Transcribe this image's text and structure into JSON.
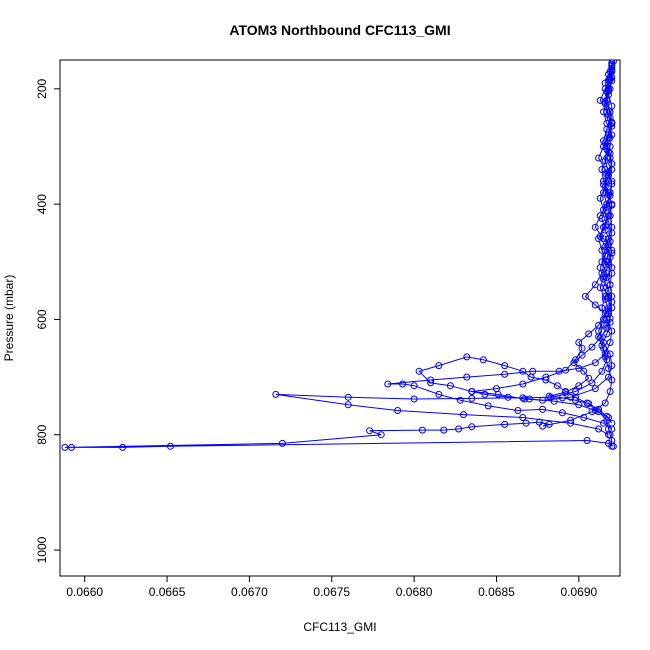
{
  "chart_data": {
    "type": "line",
    "title": "ATOM3 Northbound CFC113_GMI",
    "xlabel": "CFC113_GMI",
    "ylabel": "Pressure (mbar)",
    "xlim": [
      0.06585,
      0.06925
    ],
    "ylim": [
      1045,
      150
    ],
    "y_inverted": true,
    "xticks": [
      0.066,
      0.0665,
      0.067,
      0.0675,
      0.068,
      0.0685,
      0.069
    ],
    "xtick_labels": [
      "0.0660",
      "0.0665",
      "0.0670",
      "0.0675",
      "0.0680",
      "0.0685",
      "0.0690"
    ],
    "yticks": [
      200,
      400,
      600,
      800,
      1000
    ],
    "ytick_labels": [
      "200",
      "400",
      "600",
      "800",
      "1000"
    ],
    "grid": false,
    "colors": {
      "series": "#0000ff",
      "axes": "#000000"
    },
    "series": [
      {
        "marker": "open-circle",
        "points": [
          [
            0.0692,
            820
          ],
          [
            0.0692,
            810
          ],
          [
            0.06919,
            800
          ],
          [
            0.06918,
            790
          ],
          [
            0.06917,
            775
          ],
          [
            0.06912,
            760
          ],
          [
            0.06905,
            745
          ],
          [
            0.06898,
            735
          ],
          [
            0.06892,
            725
          ],
          [
            0.06887,
            715
          ],
          [
            0.0688,
            705
          ],
          [
            0.06871,
            700
          ],
          [
            0.06866,
            690
          ],
          [
            0.06855,
            680
          ],
          [
            0.06842,
            670
          ],
          [
            0.06832,
            665
          ],
          [
            0.06815,
            680
          ],
          [
            0.06803,
            690
          ],
          [
            0.0681,
            710
          ],
          [
            0.06822,
            715
          ],
          [
            0.06835,
            725
          ],
          [
            0.06851,
            730
          ],
          [
            0.06867,
            738
          ],
          [
            0.06878,
            740
          ],
          [
            0.06895,
            735
          ],
          [
            0.0691,
            720
          ],
          [
            0.06918,
            700
          ],
          [
            0.0692,
            680
          ],
          [
            0.06919,
            660
          ],
          [
            0.06915,
            640
          ],
          [
            0.06912,
            620
          ],
          [
            0.06915,
            600
          ],
          [
            0.06918,
            580
          ],
          [
            0.0692,
            560
          ],
          [
            0.06919,
            540
          ],
          [
            0.06917,
            520
          ],
          [
            0.06914,
            500
          ],
          [
            0.06916,
            480
          ],
          [
            0.06918,
            460
          ],
          [
            0.0692,
            440
          ],
          [
            0.06919,
            420
          ],
          [
            0.06917,
            400
          ],
          [
            0.06915,
            380
          ],
          [
            0.06918,
            360
          ],
          [
            0.0692,
            340
          ],
          [
            0.06919,
            320
          ],
          [
            0.06917,
            300
          ],
          [
            0.06918,
            280
          ],
          [
            0.0692,
            260
          ],
          [
            0.06919,
            240
          ],
          [
            0.06917,
            220
          ],
          [
            0.06918,
            200
          ],
          [
            0.06919,
            180
          ],
          [
            0.0692,
            165
          ]
        ]
      },
      {
        "marker": "open-circle",
        "points": [
          [
            0.06921,
            820
          ],
          [
            0.06918,
            815
          ],
          [
            0.06905,
            810
          ],
          [
            0.06652,
            820
          ],
          [
            0.06623,
            822
          ],
          [
            0.06592,
            822
          ],
          [
            0.06588,
            822
          ],
          [
            0.0672,
            815
          ],
          [
            0.0678,
            800
          ],
          [
            0.06773,
            793
          ],
          [
            0.06805,
            792
          ],
          [
            0.06818,
            792
          ],
          [
            0.06827,
            790
          ],
          [
            0.06835,
            786
          ],
          [
            0.06855,
            782
          ],
          [
            0.06868,
            780
          ],
          [
            0.06876,
            778
          ],
          [
            0.06882,
            782
          ],
          [
            0.06878,
            785
          ],
          [
            0.06895,
            775
          ],
          [
            0.06908,
            760
          ],
          [
            0.06916,
            745
          ],
          [
            0.06919,
            725
          ],
          [
            0.0692,
            705
          ],
          [
            0.06918,
            685
          ],
          [
            0.06916,
            665
          ],
          [
            0.06914,
            645
          ],
          [
            0.06917,
            625
          ],
          [
            0.06919,
            605
          ],
          [
            0.06918,
            585
          ],
          [
            0.06916,
            565
          ],
          [
            0.06913,
            545
          ],
          [
            0.06915,
            525
          ],
          [
            0.06918,
            505
          ],
          [
            0.0692,
            485
          ],
          [
            0.06919,
            465
          ],
          [
            0.06916,
            445
          ],
          [
            0.06914,
            425
          ],
          [
            0.06917,
            405
          ],
          [
            0.06919,
            385
          ],
          [
            0.0692,
            365
          ],
          [
            0.06918,
            345
          ],
          [
            0.06916,
            325
          ],
          [
            0.06917,
            305
          ],
          [
            0.06919,
            285
          ],
          [
            0.0692,
            265
          ],
          [
            0.06918,
            245
          ],
          [
            0.06916,
            225
          ],
          [
            0.06917,
            205
          ],
          [
            0.06919,
            185
          ],
          [
            0.0692,
            170
          ],
          [
            0.0692,
            155
          ]
        ]
      },
      {
        "marker": "open-circle",
        "points": [
          [
            0.06918,
            800
          ],
          [
            0.06912,
            790
          ],
          [
            0.06895,
            780
          ],
          [
            0.06866,
            770
          ],
          [
            0.0683,
            765
          ],
          [
            0.0679,
            758
          ],
          [
            0.0676,
            748
          ],
          [
            0.06716,
            730
          ],
          [
            0.0676,
            735
          ],
          [
            0.068,
            738
          ],
          [
            0.06835,
            737
          ],
          [
            0.06866,
            736
          ],
          [
            0.06883,
            735
          ],
          [
            0.06898,
            725
          ],
          [
            0.06908,
            710
          ],
          [
            0.06914,
            690
          ],
          [
            0.06917,
            670
          ],
          [
            0.06915,
            650
          ],
          [
            0.06912,
            630
          ],
          [
            0.06915,
            610
          ],
          [
            0.06918,
            590
          ],
          [
            0.0692,
            570
          ],
          [
            0.06918,
            550
          ],
          [
            0.06915,
            530
          ],
          [
            0.06913,
            510
          ],
          [
            0.06916,
            490
          ],
          [
            0.06918,
            470
          ],
          [
            0.0692,
            450
          ],
          [
            0.06918,
            430
          ],
          [
            0.06915,
            410
          ],
          [
            0.06913,
            390
          ],
          [
            0.06916,
            370
          ],
          [
            0.06918,
            350
          ],
          [
            0.0692,
            330
          ],
          [
            0.06918,
            310
          ],
          [
            0.06915,
            290
          ],
          [
            0.06917,
            270
          ],
          [
            0.06919,
            250
          ],
          [
            0.0692,
            230
          ],
          [
            0.06918,
            210
          ],
          [
            0.06916,
            190
          ],
          [
            0.06918,
            175
          ],
          [
            0.0692,
            160
          ]
        ]
      },
      {
        "marker": "open-circle",
        "points": [
          [
            0.0692,
            790
          ],
          [
            0.06915,
            780
          ],
          [
            0.06903,
            770
          ],
          [
            0.0689,
            762
          ],
          [
            0.06878,
            756
          ],
          [
            0.06863,
            758
          ],
          [
            0.06845,
            750
          ],
          [
            0.06828,
            740
          ],
          [
            0.06815,
            730
          ],
          [
            0.068,
            715
          ],
          [
            0.06793,
            712
          ],
          [
            0.06784,
            712
          ],
          [
            0.0681,
            705
          ],
          [
            0.06832,
            700
          ],
          [
            0.06855,
            695
          ],
          [
            0.06872,
            690
          ],
          [
            0.06888,
            690
          ],
          [
            0.069,
            685
          ],
          [
            0.0691,
            675
          ],
          [
            0.06916,
            660
          ],
          [
            0.06919,
            640
          ],
          [
            0.0692,
            620
          ],
          [
            0.06917,
            600
          ],
          [
            0.06914,
            580
          ],
          [
            0.06916,
            560
          ],
          [
            0.06919,
            540
          ],
          [
            0.0692,
            520
          ],
          [
            0.06917,
            500
          ],
          [
            0.06914,
            480
          ],
          [
            0.06912,
            460
          ],
          [
            0.06915,
            440
          ],
          [
            0.06918,
            420
          ],
          [
            0.0692,
            400
          ],
          [
            0.06918,
            380
          ],
          [
            0.06915,
            360
          ],
          [
            0.06914,
            340
          ],
          [
            0.06917,
            320
          ],
          [
            0.06919,
            300
          ],
          [
            0.0692,
            280
          ],
          [
            0.06917,
            260
          ],
          [
            0.06915,
            240
          ],
          [
            0.06917,
            220
          ],
          [
            0.06919,
            200
          ],
          [
            0.0692,
            180
          ],
          [
            0.0692,
            158
          ]
        ]
      },
      {
        "marker": "open-circle",
        "points": [
          [
            0.06918,
            770
          ],
          [
            0.0691,
            758
          ],
          [
            0.069,
            748
          ],
          [
            0.06885,
            742
          ],
          [
            0.0687,
            738
          ],
          [
            0.06857,
            735
          ],
          [
            0.06843,
            730
          ],
          [
            0.06835,
            725
          ],
          [
            0.0685,
            720
          ],
          [
            0.06866,
            712
          ],
          [
            0.0688,
            700
          ],
          [
            0.06892,
            688
          ],
          [
            0.06898,
            670
          ],
          [
            0.06902,
            650
          ],
          [
            0.069,
            640
          ],
          [
            0.06906,
            625
          ],
          [
            0.06912,
            610
          ],
          [
            0.06916,
            590
          ],
          [
            0.0691,
            575
          ],
          [
            0.06904,
            560
          ],
          [
            0.0691,
            540
          ],
          [
            0.06914,
            520
          ],
          [
            0.06918,
            500
          ],
          [
            0.0692,
            480
          ],
          [
            0.06915,
            460
          ],
          [
            0.0691,
            440
          ],
          [
            0.06913,
            420
          ],
          [
            0.06917,
            400
          ],
          [
            0.06919,
            380
          ],
          [
            0.0692,
            360
          ],
          [
            0.06916,
            340
          ],
          [
            0.06912,
            320
          ],
          [
            0.06915,
            300
          ],
          [
            0.06918,
            280
          ],
          [
            0.0692,
            260
          ],
          [
            0.06917,
            240
          ],
          [
            0.06913,
            220
          ],
          [
            0.06916,
            200
          ],
          [
            0.06918,
            185
          ],
          [
            0.0692,
            168
          ]
        ]
      },
      {
        "marker": "open-circle",
        "points": [
          [
            0.0692,
            780
          ],
          [
            0.06917,
            768
          ],
          [
            0.06912,
            756
          ],
          [
            0.06906,
            746
          ],
          [
            0.06898,
            740
          ],
          [
            0.0689,
            736
          ],
          [
            0.06882,
            733
          ],
          [
            0.06892,
            726
          ],
          [
            0.069,
            715
          ],
          [
            0.06906,
            702
          ],
          [
            0.06903,
            690
          ],
          [
            0.06897,
            675
          ],
          [
            0.06902,
            662
          ],
          [
            0.06908,
            648
          ],
          [
            0.06913,
            632
          ],
          [
            0.06917,
            615
          ],
          [
            0.06919,
            598
          ],
          [
            0.0692,
            580
          ],
          [
            0.06918,
            562
          ],
          [
            0.06915,
            545
          ],
          [
            0.06917,
            527
          ],
          [
            0.0692,
            510
          ],
          [
            0.06919,
            492
          ],
          [
            0.06916,
            474
          ],
          [
            0.06913,
            456
          ],
          [
            0.06916,
            438
          ],
          [
            0.06919,
            420
          ],
          [
            0.0692,
            402
          ],
          [
            0.06918,
            384
          ],
          [
            0.06915,
            366
          ],
          [
            0.06917,
            348
          ],
          [
            0.0692,
            330
          ],
          [
            0.06919,
            312
          ],
          [
            0.06916,
            294
          ],
          [
            0.06918,
            276
          ],
          [
            0.0692,
            258
          ],
          [
            0.06919,
            240
          ],
          [
            0.06916,
            222
          ],
          [
            0.06918,
            204
          ],
          [
            0.0692,
            186
          ],
          [
            0.06919,
            170
          ],
          [
            0.06921,
            152
          ]
        ]
      }
    ]
  }
}
